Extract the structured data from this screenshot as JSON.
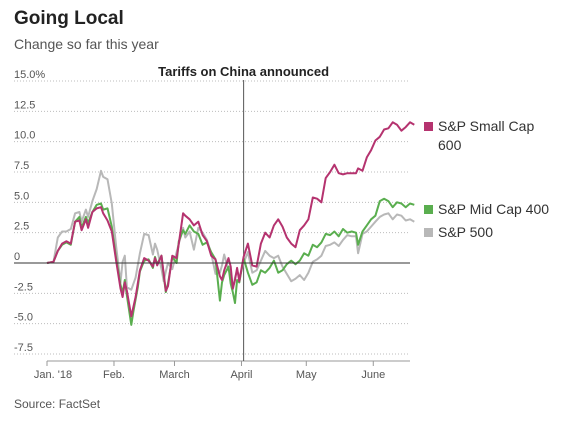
{
  "header": {
    "title": "Going Local",
    "subtitle": "Change so far this year",
    "source": "Source: FactSet"
  },
  "chart_data": {
    "type": "line",
    "title": "Going Local",
    "subtitle": "Change so far this year",
    "xlabel": "",
    "ylabel": "",
    "ylim": [
      -7.5,
      15.0
    ],
    "y_ticks": [
      "15.0%",
      "12.5",
      "10.0",
      "7.5",
      "5.0",
      "2.5",
      "0",
      "-2.5",
      "-5.0",
      "-7.5"
    ],
    "y_tick_values": [
      15.0,
      12.5,
      10.0,
      7.5,
      5.0,
      2.5,
      0,
      -2.5,
      -5.0,
      -7.5
    ],
    "x_ticks": [
      "Jan. '18",
      "Feb.",
      "March",
      "April",
      "May",
      "June"
    ],
    "x_tick_days": [
      0,
      31,
      59,
      90,
      120,
      151
    ],
    "x_range_days": [
      0,
      168
    ],
    "gridlines": "horizontal dotted",
    "annotation": {
      "label": "Tariffs on China announced",
      "day": 91
    },
    "legend_placement": "right",
    "series": [
      {
        "name": "S&P Small Cap 600",
        "legend_lines": [
          "S&P Small Cap",
          "600"
        ],
        "color": "#b5336f",
        "points": [
          [
            0,
            0
          ],
          [
            3,
            0.1
          ],
          [
            5,
            1.0
          ],
          [
            7,
            1.6
          ],
          [
            9,
            1.8
          ],
          [
            11,
            1.6
          ],
          [
            13,
            3.4
          ],
          [
            15,
            3.5
          ],
          [
            16,
            2.7
          ],
          [
            18,
            3.6
          ],
          [
            19,
            2.9
          ],
          [
            21,
            4.2
          ],
          [
            23,
            4.5
          ],
          [
            25,
            4.6
          ],
          [
            26,
            4.1
          ],
          [
            28,
            3.5
          ],
          [
            30,
            2.6
          ],
          [
            32,
            0.2
          ],
          [
            34,
            -2.1
          ],
          [
            35,
            -2.8
          ],
          [
            36,
            -1.6
          ],
          [
            37,
            -2.3
          ],
          [
            39,
            -4.4
          ],
          [
            41,
            -2.8
          ],
          [
            43,
            -0.6
          ],
          [
            45,
            0.4
          ],
          [
            47,
            0.2
          ],
          [
            49,
            -0.3
          ],
          [
            50,
            0.4
          ],
          [
            51,
            -0.2
          ],
          [
            53,
            0.6
          ],
          [
            54,
            -0.9
          ],
          [
            55,
            -2.3
          ],
          [
            56,
            -1.9
          ],
          [
            58,
            0.6
          ],
          [
            60,
            0.4
          ],
          [
            61,
            1.6
          ],
          [
            63,
            4.1
          ],
          [
            64,
            3.9
          ],
          [
            66,
            3.6
          ],
          [
            68,
            3.1
          ],
          [
            70,
            3.4
          ],
          [
            72,
            2.3
          ],
          [
            74,
            1.8
          ],
          [
            76,
            0.6
          ],
          [
            78,
            0.3
          ],
          [
            80,
            -1.1
          ],
          [
            81,
            -1.4
          ],
          [
            82,
            -0.6
          ],
          [
            84,
            0.4
          ],
          [
            85,
            -0.3
          ],
          [
            86,
            -2.1
          ],
          [
            87,
            -1.4
          ],
          [
            88,
            -0.4
          ],
          [
            89,
            -1.5
          ],
          [
            91,
            0.5
          ],
          [
            93,
            1.6
          ],
          [
            95,
            -0.2
          ],
          [
            97,
            -0.3
          ],
          [
            99,
            1.6
          ],
          [
            101,
            2.5
          ],
          [
            103,
            2.1
          ],
          [
            105,
            3.1
          ],
          [
            107,
            3.6
          ],
          [
            109,
            3.0
          ],
          [
            111,
            2.1
          ],
          [
            113,
            1.6
          ],
          [
            115,
            1.3
          ],
          [
            117,
            2.7
          ],
          [
            119,
            3.1
          ],
          [
            121,
            3.6
          ],
          [
            123,
            5.4
          ],
          [
            125,
            5.3
          ],
          [
            127,
            5.0
          ],
          [
            129,
            7.0
          ],
          [
            131,
            7.5
          ],
          [
            133,
            8.1
          ],
          [
            135,
            7.4
          ],
          [
            137,
            7.3
          ],
          [
            139,
            7.4
          ],
          [
            141,
            7.4
          ],
          [
            143,
            7.4
          ],
          [
            144,
            7.8
          ],
          [
            146,
            7.6
          ],
          [
            148,
            8.7
          ],
          [
            150,
            9.3
          ],
          [
            152,
            10.1
          ],
          [
            154,
            10.4
          ],
          [
            156,
            11.0
          ],
          [
            158,
            11.1
          ],
          [
            160,
            11.6
          ],
          [
            162,
            11.4
          ],
          [
            164,
            10.9
          ],
          [
            166,
            11.2
          ],
          [
            168,
            11.6
          ],
          [
            170,
            11.4
          ]
        ]
      },
      {
        "name": "S&P Mid Cap 400",
        "legend_lines": [
          "S&P Mid Cap 400"
        ],
        "color": "#5aae4f",
        "points": [
          [
            0,
            0
          ],
          [
            3,
            0.1
          ],
          [
            5,
            1.0
          ],
          [
            7,
            1.5
          ],
          [
            9,
            1.7
          ],
          [
            11,
            1.5
          ],
          [
            13,
            3.4
          ],
          [
            15,
            3.8
          ],
          [
            16,
            2.9
          ],
          [
            18,
            3.8
          ],
          [
            19,
            3.3
          ],
          [
            21,
            4.2
          ],
          [
            23,
            4.8
          ],
          [
            25,
            4.9
          ],
          [
            26,
            4.4
          ],
          [
            28,
            4.5
          ],
          [
            30,
            3.0
          ],
          [
            32,
            0.4
          ],
          [
            34,
            -1.8
          ],
          [
            35,
            -2.5
          ],
          [
            36,
            -1.4
          ],
          [
            37,
            -2.7
          ],
          [
            39,
            -5.1
          ],
          [
            40,
            -4.0
          ],
          [
            42,
            -2.0
          ],
          [
            43,
            -0.7
          ],
          [
            45,
            0.2
          ],
          [
            47,
            0.3
          ],
          [
            49,
            -0.4
          ],
          [
            50,
            0.5
          ],
          [
            51,
            -0.1
          ],
          [
            53,
            0.6
          ],
          [
            54,
            -1.0
          ],
          [
            55,
            -2.4
          ],
          [
            56,
            -1.7
          ],
          [
            58,
            0.5
          ],
          [
            60,
            0.0
          ],
          [
            61,
            1.8
          ],
          [
            63,
            2.7
          ],
          [
            64,
            2.4
          ],
          [
            66,
            3.1
          ],
          [
            68,
            2.6
          ],
          [
            70,
            2.4
          ],
          [
            72,
            1.5
          ],
          [
            74,
            1.7
          ],
          [
            76,
            0.9
          ],
          [
            78,
            0.3
          ],
          [
            80,
            -3.1
          ],
          [
            81,
            -1.6
          ],
          [
            82,
            -1.0
          ],
          [
            84,
            -0.3
          ],
          [
            85,
            -1.7
          ],
          [
            86,
            -2.4
          ],
          [
            87,
            -3.3
          ],
          [
            88,
            -1.4
          ],
          [
            89,
            -1.6
          ],
          [
            91,
            0.4
          ],
          [
            93,
            -0.8
          ],
          [
            95,
            -1.8
          ],
          [
            97,
            -1.6
          ],
          [
            99,
            -0.6
          ],
          [
            101,
            -0.8
          ],
          [
            103,
            -0.4
          ],
          [
            105,
            0.2
          ],
          [
            107,
            -0.8
          ],
          [
            109,
            -0.6
          ],
          [
            111,
            -0.1
          ],
          [
            113,
            0.2
          ],
          [
            115,
            -0.1
          ],
          [
            117,
            0.2
          ],
          [
            119,
            0.8
          ],
          [
            121,
            0.6
          ],
          [
            123,
            1.5
          ],
          [
            125,
            1.3
          ],
          [
            127,
            1.7
          ],
          [
            129,
            2.4
          ],
          [
            131,
            2.3
          ],
          [
            133,
            2.6
          ],
          [
            135,
            2.2
          ],
          [
            137,
            2.8
          ],
          [
            139,
            2.5
          ],
          [
            141,
            2.6
          ],
          [
            143,
            2.5
          ],
          [
            144,
            1.5
          ],
          [
            146,
            2.6
          ],
          [
            148,
            3.1
          ],
          [
            150,
            3.6
          ],
          [
            152,
            3.9
          ],
          [
            154,
            5.1
          ],
          [
            156,
            5.3
          ],
          [
            158,
            5.1
          ],
          [
            160,
            4.6
          ],
          [
            162,
            5.0
          ],
          [
            164,
            4.9
          ],
          [
            166,
            4.6
          ],
          [
            168,
            4.9
          ],
          [
            170,
            4.8
          ]
        ]
      },
      {
        "name": "S&P 500",
        "legend_lines": [
          "S&P 500"
        ],
        "color": "#b8b8b8",
        "points": [
          [
            0,
            0
          ],
          [
            3,
            0.1
          ],
          [
            5,
            2.1
          ],
          [
            7,
            2.6
          ],
          [
            9,
            2.6
          ],
          [
            11,
            2.8
          ],
          [
            13,
            4.1
          ],
          [
            15,
            4.2
          ],
          [
            16,
            3.4
          ],
          [
            18,
            4.4
          ],
          [
            19,
            3.8
          ],
          [
            21,
            5.1
          ],
          [
            23,
            6.1
          ],
          [
            25,
            7.6
          ],
          [
            26,
            7.1
          ],
          [
            28,
            6.9
          ],
          [
            30,
            4.9
          ],
          [
            32,
            1.4
          ],
          [
            34,
            -1.6
          ],
          [
            35,
            0.1
          ],
          [
            36,
            0.6
          ],
          [
            37,
            -2.0
          ],
          [
            39,
            -2.2
          ],
          [
            41,
            -1.2
          ],
          [
            43,
            0.8
          ],
          [
            45,
            2.4
          ],
          [
            47,
            2.3
          ],
          [
            49,
            0.7
          ],
          [
            50,
            1.6
          ],
          [
            51,
            1.1
          ],
          [
            53,
            -0.5
          ],
          [
            54,
            -1.5
          ],
          [
            55,
            -0.7
          ],
          [
            56,
            0.0
          ],
          [
            58,
            -0.5
          ],
          [
            60,
            0.9
          ],
          [
            61,
            1.6
          ],
          [
            63,
            2.9
          ],
          [
            64,
            2.1
          ],
          [
            66,
            2.6
          ],
          [
            68,
            1.1
          ],
          [
            70,
            2.9
          ],
          [
            72,
            2.5
          ],
          [
            74,
            1.9
          ],
          [
            76,
            0.8
          ],
          [
            78,
            -0.9
          ],
          [
            80,
            -0.8
          ],
          [
            81,
            -0.2
          ],
          [
            82,
            0.7
          ],
          [
            84,
            -0.6
          ],
          [
            85,
            -0.9
          ],
          [
            86,
            -2.2
          ],
          [
            87,
            -1.2
          ],
          [
            88,
            -0.6
          ],
          [
            89,
            -1.2
          ],
          [
            91,
            0.0
          ],
          [
            93,
            0.9
          ],
          [
            95,
            -0.8
          ],
          [
            97,
            -0.6
          ],
          [
            99,
            0.2
          ],
          [
            101,
            1.0
          ],
          [
            103,
            0.6
          ],
          [
            105,
            0.4
          ],
          [
            107,
            0.6
          ],
          [
            109,
            -0.3
          ],
          [
            111,
            -0.9
          ],
          [
            113,
            -1.5
          ],
          [
            115,
            -1.3
          ],
          [
            117,
            -1.0
          ],
          [
            119,
            -1.4
          ],
          [
            121,
            -0.8
          ],
          [
            123,
            0.1
          ],
          [
            125,
            0.3
          ],
          [
            127,
            0.6
          ],
          [
            129,
            1.4
          ],
          [
            131,
            1.5
          ],
          [
            133,
            1.7
          ],
          [
            135,
            1.4
          ],
          [
            137,
            1.9
          ],
          [
            139,
            2.3
          ],
          [
            141,
            2.2
          ],
          [
            143,
            2.2
          ],
          [
            144,
            0.8
          ],
          [
            146,
            2.4
          ],
          [
            148,
            2.6
          ],
          [
            150,
            3.0
          ],
          [
            152,
            3.4
          ],
          [
            154,
            3.8
          ],
          [
            156,
            4.0
          ],
          [
            158,
            4.1
          ],
          [
            160,
            3.6
          ],
          [
            162,
            4.0
          ],
          [
            164,
            3.9
          ],
          [
            166,
            3.5
          ],
          [
            168,
            3.6
          ],
          [
            170,
            3.4
          ]
        ]
      }
    ]
  }
}
